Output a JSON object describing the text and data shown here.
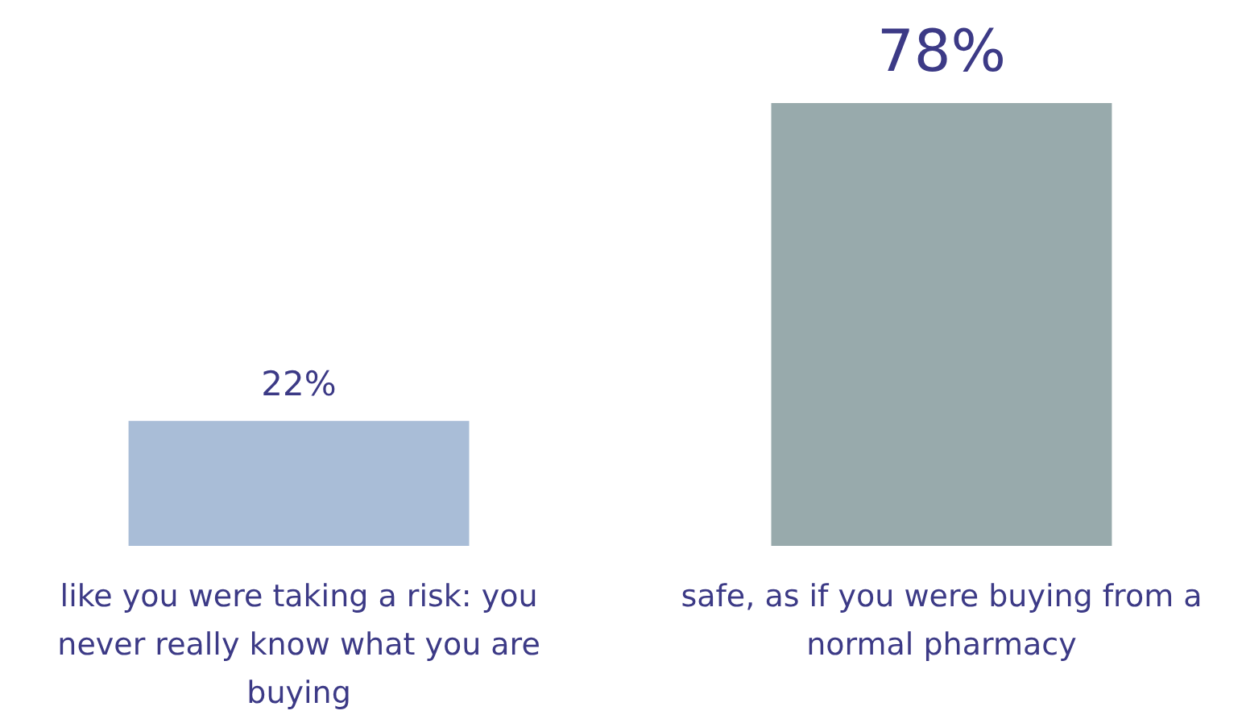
{
  "chart_data": {
    "type": "bar",
    "categories": [
      "like you were taking a risk: you never really know what you are buying",
      "safe, as if you were buying from a normal pharmacy"
    ],
    "values": [
      22,
      78
    ],
    "colors": [
      "#a9bdd7",
      "#98aaac"
    ],
    "value_labels": [
      "22%",
      "78%"
    ]
  }
}
